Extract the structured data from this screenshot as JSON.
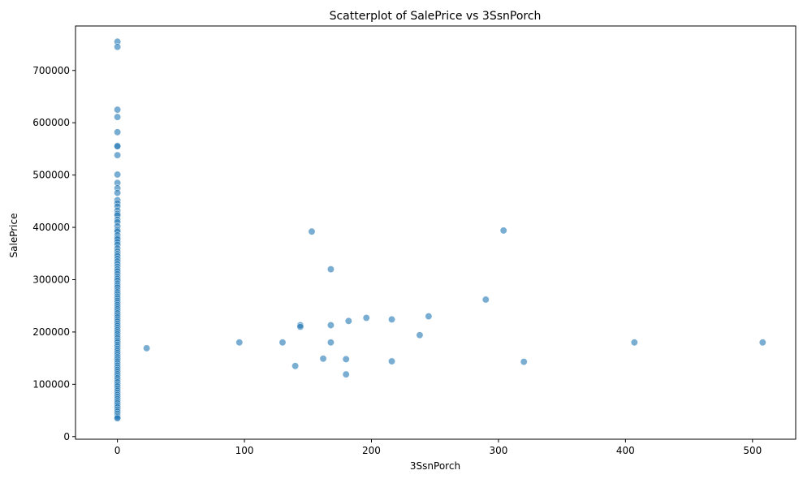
{
  "chart_data": {
    "type": "scatter",
    "title": "Scatterplot of SalePrice vs 3SsnPorch",
    "xlabel": "3SsnPorch",
    "ylabel": "SalePrice",
    "xlim": [
      -33,
      534
    ],
    "ylim": [
      -5000,
      785000
    ],
    "xticks": [
      0,
      100,
      200,
      300,
      400,
      500
    ],
    "xtick_labels": [
      "0",
      "100",
      "200",
      "300",
      "400",
      "500"
    ],
    "yticks": [
      0,
      100000,
      200000,
      300000,
      400000,
      500000,
      600000,
      700000
    ],
    "ytick_labels": [
      "0",
      "100000",
      "200000",
      "300000",
      "400000",
      "500000",
      "600000",
      "700000"
    ],
    "grid": false,
    "point_color": "#1f77b4",
    "point_opacity": 0.6,
    "points_nonzero": [
      {
        "x": 23,
        "y": 169000
      },
      {
        "x": 96,
        "y": 180000
      },
      {
        "x": 130,
        "y": 180000
      },
      {
        "x": 140,
        "y": 135000
      },
      {
        "x": 144,
        "y": 213000
      },
      {
        "x": 144,
        "y": 210000
      },
      {
        "x": 153,
        "y": 392000
      },
      {
        "x": 162,
        "y": 149000
      },
      {
        "x": 168,
        "y": 320000
      },
      {
        "x": 168,
        "y": 213000
      },
      {
        "x": 168,
        "y": 180000
      },
      {
        "x": 180,
        "y": 148000
      },
      {
        "x": 180,
        "y": 119000
      },
      {
        "x": 182,
        "y": 221000
      },
      {
        "x": 196,
        "y": 227000
      },
      {
        "x": 216,
        "y": 224000
      },
      {
        "x": 216,
        "y": 144000
      },
      {
        "x": 238,
        "y": 194000
      },
      {
        "x": 245,
        "y": 230000
      },
      {
        "x": 290,
        "y": 262000
      },
      {
        "x": 304,
        "y": 394000
      },
      {
        "x": 320,
        "y": 143000
      },
      {
        "x": 407,
        "y": 180000
      },
      {
        "x": 508,
        "y": 180000
      }
    ],
    "points_at_zero_y": [
      755000,
      745000,
      625000,
      611000,
      582000,
      556000,
      555000,
      538000,
      501000,
      485000,
      475000,
      466000,
      452000,
      446000,
      440000,
      432000,
      426000,
      423000,
      415000,
      410000,
      402000,
      395000,
      392000,
      385000,
      380000,
      377000,
      372000,
      367000,
      360000,
      354000,
      349000,
      345000,
      340000,
      335000,
      330000,
      325000,
      320000,
      316000,
      311000,
      306000,
      302000,
      298000,
      293000,
      289000,
      285000,
      280000,
      276000,
      272000,
      268000,
      264000,
      260000,
      256000,
      252000,
      248000,
      244000,
      240000,
      236000,
      232000,
      228000,
      224000,
      220000,
      216000,
      212000,
      208000,
      204000,
      200000,
      196000,
      192000,
      188000,
      184000,
      180000,
      176000,
      172000,
      168000,
      164000,
      160000,
      156000,
      152000,
      148000,
      144000,
      140000,
      136000,
      132000,
      128000,
      124000,
      120000,
      116000,
      112000,
      108000,
      104000,
      100000,
      96000,
      92000,
      88000,
      84000,
      80000,
      76000,
      72000,
      68000,
      64000,
      60000,
      56000,
      52000,
      48000,
      44000,
      40000,
      37000,
      35000
    ]
  }
}
